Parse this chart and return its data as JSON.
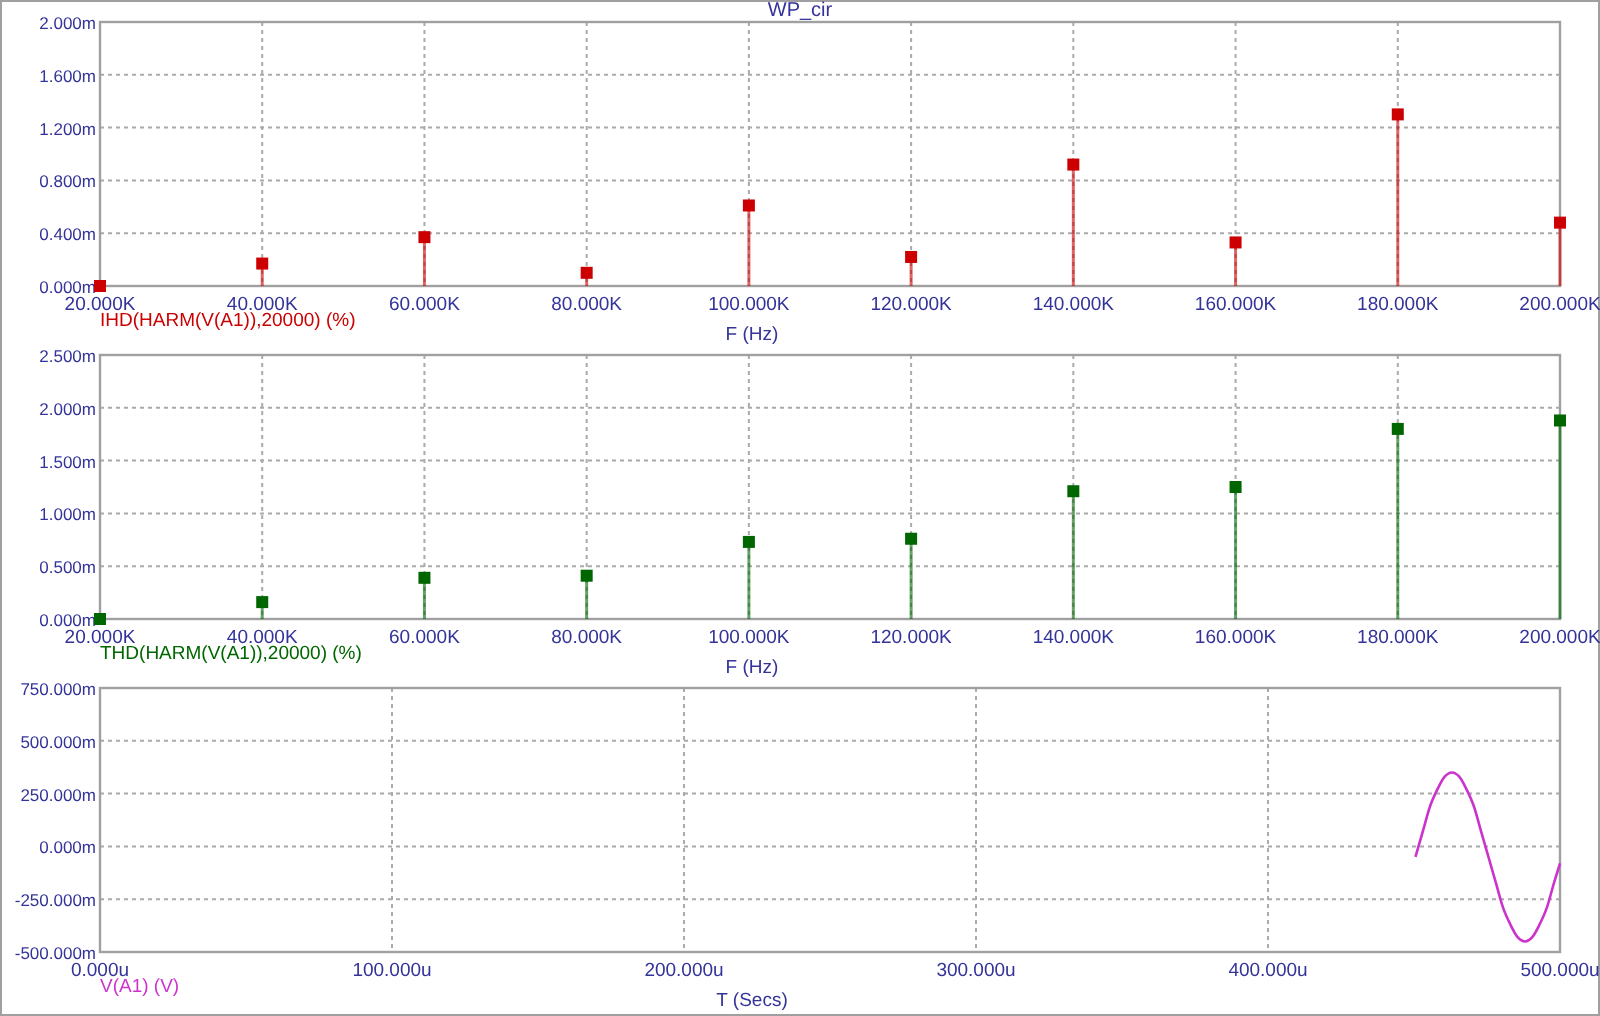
{
  "chart_data": [
    {
      "type": "lollipop",
      "title": "WP_cir",
      "xlabel": "F (Hz)",
      "x": [
        20000,
        40000,
        60000,
        80000,
        100000,
        120000,
        140000,
        160000,
        180000,
        200000
      ],
      "series": [
        {
          "name": "IHD(HARM(V(A1)),20000) (%)",
          "color": "#cc0000",
          "values": [
            0,
            0.17,
            0.37,
            0.1,
            0.61,
            0.22,
            0.92,
            0.33,
            1.3,
            0.48
          ]
        }
      ],
      "xlim": [
        20000,
        200000
      ],
      "xticks": [
        {
          "value": 20000,
          "label": "20.000K"
        },
        {
          "value": 40000,
          "label": "40.000K"
        },
        {
          "value": 60000,
          "label": "60.000K"
        },
        {
          "value": 80000,
          "label": "80.000K"
        },
        {
          "value": 100000,
          "label": "100.000K"
        },
        {
          "value": 120000,
          "label": "120.000K"
        },
        {
          "value": 140000,
          "label": "140.000K"
        },
        {
          "value": 160000,
          "label": "160.000K"
        },
        {
          "value": 180000,
          "label": "180.000K"
        },
        {
          "value": 200000,
          "label": "200.000K"
        }
      ],
      "ylim": [
        0,
        2
      ],
      "yticks": [
        {
          "value": 0,
          "label": "0.000m"
        },
        {
          "value": 0.4,
          "label": "0.400m"
        },
        {
          "value": 0.8,
          "label": "0.800m"
        },
        {
          "value": 1.2,
          "label": "1.200m"
        },
        {
          "value": 1.6,
          "label": "1.600m"
        },
        {
          "value": 2,
          "label": "2.000m"
        }
      ],
      "grid": true,
      "legend": "bottom left",
      "marker": "square"
    },
    {
      "type": "lollipop",
      "xlabel": "F (Hz)",
      "x": [
        20000,
        40000,
        60000,
        80000,
        100000,
        120000,
        140000,
        160000,
        180000,
        200000
      ],
      "series": [
        {
          "name": "THD(HARM(V(A1)),20000) (%)",
          "color": "#006600",
          "values": [
            0,
            0.16,
            0.39,
            0.41,
            0.73,
            0.76,
            1.21,
            1.25,
            1.8,
            1.88
          ]
        }
      ],
      "xlim": [
        20000,
        200000
      ],
      "xticks": [
        {
          "value": 20000,
          "label": "20.000K"
        },
        {
          "value": 40000,
          "label": "40.000K"
        },
        {
          "value": 60000,
          "label": "60.000K"
        },
        {
          "value": 80000,
          "label": "80.000K"
        },
        {
          "value": 100000,
          "label": "100.000K"
        },
        {
          "value": 120000,
          "label": "120.000K"
        },
        {
          "value": 140000,
          "label": "140.000K"
        },
        {
          "value": 160000,
          "label": "160.000K"
        },
        {
          "value": 180000,
          "label": "180.000K"
        },
        {
          "value": 200000,
          "label": "200.000K"
        }
      ],
      "ylim": [
        0,
        2.5
      ],
      "yticks": [
        {
          "value": 0,
          "label": "0.000m"
        },
        {
          "value": 0.5,
          "label": "0.500m"
        },
        {
          "value": 1,
          "label": "1.000m"
        },
        {
          "value": 1.5,
          "label": "1.500m"
        },
        {
          "value": 2,
          "label": "2.000m"
        },
        {
          "value": 2.5,
          "label": "2.500m"
        }
      ],
      "grid": true,
      "legend": "bottom left",
      "marker": "square"
    },
    {
      "type": "line",
      "xlabel": "T (Secs)",
      "x": [
        450.5,
        453,
        455.5,
        458,
        460.5,
        463,
        465.5,
        468,
        470.5,
        473,
        475.5,
        478,
        480.5,
        483,
        485.5,
        488,
        490.5,
        493,
        495.5,
        498,
        500
      ],
      "series": [
        {
          "name": "V(A1) (V)",
          "color": "#cc33cc",
          "values": [
            -50,
            70,
            190,
            270,
            330,
            350,
            330,
            270,
            190,
            70,
            -50,
            -170,
            -290,
            -370,
            -430,
            -450,
            -430,
            -370,
            -290,
            -170,
            -80
          ]
        }
      ],
      "xlim": [
        0,
        500
      ],
      "xticks": [
        {
          "value": 0,
          "label": "0.000u"
        },
        {
          "value": 100,
          "label": "100.000u"
        },
        {
          "value": 200,
          "label": "200.000u"
        },
        {
          "value": 300,
          "label": "300.000u"
        },
        {
          "value": 400,
          "label": "400.000u"
        },
        {
          "value": 500,
          "label": "500.000u"
        }
      ],
      "ylim": [
        -500,
        750
      ],
      "yticks": [
        {
          "value": -500,
          "label": "-500.000m"
        },
        {
          "value": -250,
          "label": "-250.000m"
        },
        {
          "value": 0,
          "label": "0.000m"
        },
        {
          "value": 250,
          "label": "250.000m"
        },
        {
          "value": 500,
          "label": "500.000m"
        },
        {
          "value": 750,
          "label": "750.000m"
        }
      ],
      "grid": true,
      "legend": "bottom left",
      "marker": "none",
      "line_style": "solid"
    }
  ]
}
